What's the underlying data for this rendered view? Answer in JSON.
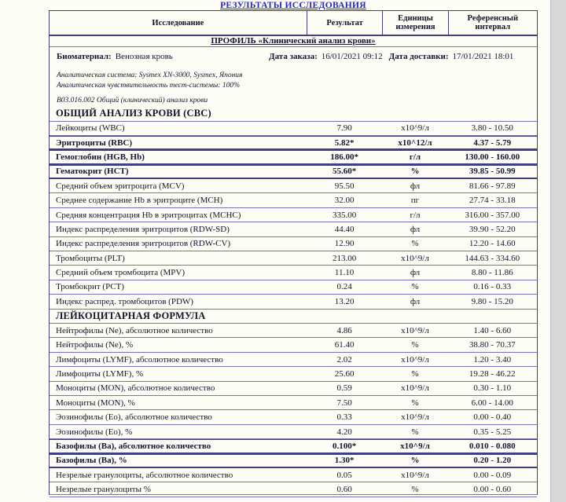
{
  "page": {
    "title": "РЕЗУЛЬТАТЫ ИССЛЕДОВАНИЯ",
    "table_header": {
      "study": "Исследование",
      "result": "Результат",
      "units": "Единицы измерения",
      "reference": "Референсный интервал"
    },
    "profile_title": "ПРОФИЛЬ «Клинический анализ крови»",
    "biomaterial_label": "Биоматериал:",
    "biomaterial_value": "Венозная кровь",
    "order_date_label": "Дата заказа:",
    "order_date_value": "16/01/2021 09:12",
    "delivery_date_label": "Дата доставки:",
    "delivery_date_value": "17/01/2021 18:01",
    "notes": {
      "system": "Аналитическая система: Sysmex XN-3000, Sysmex, Япония",
      "sensitivity": "Аналитическая чувствительность тест-системы: 100%",
      "service_code": "В03.016.002 Общий (клинический) анализ крови"
    }
  },
  "sections": [
    {
      "title": "ОБЩИЙ АНАЛИЗ КРОВИ (CBC)",
      "rows": [
        {
          "name": "Лейкоциты (WBC)",
          "result": "7.90",
          "units": "x10^9/л",
          "reference": "3.80 - 10.50",
          "abnormal": false
        },
        {
          "name": "Эритроциты (RBC)",
          "result": "5.82*",
          "units": "x10^12/л",
          "reference": "4.37 - 5.79",
          "abnormal": true
        },
        {
          "name": "Гемоглобин (HGB, Hb)",
          "result": "186.00*",
          "units": "г/л",
          "reference": "130.00 - 160.00",
          "abnormal": true
        },
        {
          "name": "Гематокрит (HCT)",
          "result": "55.60*",
          "units": "%",
          "reference": "39.85 - 50.99",
          "abnormal": true
        },
        {
          "name": "Средний объем эритроцита (MCV)",
          "result": "95.50",
          "units": "фл",
          "reference": "81.66 - 97.89",
          "abnormal": false
        },
        {
          "name": "Среднее содержание Hb в эритроците (MCH)",
          "result": "32.00",
          "units": "пг",
          "reference": "27.74 - 33.18",
          "abnormal": false
        },
        {
          "name": "Средняя концентрация Hb в эритроцитах (MCHC)",
          "result": "335.00",
          "units": "г/л",
          "reference": "316.00 - 357.00",
          "abnormal": false
        },
        {
          "name": "Индекс распределения эритроцитов (RDW-SD)",
          "result": "44.40",
          "units": "фл",
          "reference": "39.90 - 52.20",
          "abnormal": false
        },
        {
          "name": "Индекс распределения эритроцитов (RDW-CV)",
          "result": "12.90",
          "units": "%",
          "reference": "12.20 - 14.60",
          "abnormal": false
        },
        {
          "name": "Тромбоциты (PLT)",
          "result": "213.00",
          "units": "x10^9/л",
          "reference": "144.63 - 334.60",
          "abnormal": false
        },
        {
          "name": "Средний объем тромбоцита (MPV)",
          "result": "11.10",
          "units": "фл",
          "reference": "8.80 - 11.86",
          "abnormal": false
        },
        {
          "name": "Тромбокрит (PCT)",
          "result": "0.24",
          "units": "%",
          "reference": "0.16 - 0.33",
          "abnormal": false
        },
        {
          "name": "Индекс распред. тромбоцитов (PDW)",
          "result": "13.20",
          "units": "фл",
          "reference": "9.80 - 15.20",
          "abnormal": false
        }
      ]
    },
    {
      "title": "ЛЕЙКОЦИТАРНАЯ ФОРМУЛА",
      "rows": [
        {
          "name": "Нейтрофилы (Ne), абсолютное количество",
          "result": "4.86",
          "units": "x10^9/л",
          "reference": "1.40 - 6.60",
          "abnormal": false
        },
        {
          "name": "Нейтрофилы (Ne), %",
          "result": "61.40",
          "units": "%",
          "reference": "38.80 - 70.37",
          "abnormal": false
        },
        {
          "name": "Лимфоциты (LYMF), абсолютное количество",
          "result": "2.02",
          "units": "x10^9/л",
          "reference": "1.20 - 3.40",
          "abnormal": false
        },
        {
          "name": "Лимфоциты (LYMF), %",
          "result": "25.60",
          "units": "%",
          "reference": "19.28 - 46.22",
          "abnormal": false
        },
        {
          "name": "Моноциты (MON), абсолютное количество",
          "result": "0.59",
          "units": "x10^9/л",
          "reference": "0.30 - 1.10",
          "abnormal": false
        },
        {
          "name": "Моноциты (MON), %",
          "result": "7.50",
          "units": "%",
          "reference": "6.00 - 14.00",
          "abnormal": false
        },
        {
          "name": "Эозинофилы (Eo), абсолютное количество",
          "result": "0.33",
          "units": "x10^9/л",
          "reference": "0.00 - 0.40",
          "abnormal": false
        },
        {
          "name": "Эозинофилы (Eo), %",
          "result": "4.20",
          "units": "%",
          "reference": "0.35 - 5.25",
          "abnormal": false
        },
        {
          "name": "Базофилы (Ba), абсолютное количество",
          "result": "0.100*",
          "units": "x10^9/л",
          "reference": "0.010 - 0.080",
          "abnormal": true
        },
        {
          "name": "Базофилы (Ba), %",
          "result": "1.30*",
          "units": "%",
          "reference": "0.20 - 1.20",
          "abnormal": true
        },
        {
          "name": "Незрелые гранулоциты, абсолютное количество",
          "result": "0.05",
          "units": "x10^9/л",
          "reference": "0.00 - 0.09",
          "abnormal": false
        },
        {
          "name": "Незрелые гранулоциты %",
          "result": "0.60",
          "units": "%",
          "reference": "0.00 - 0.60",
          "abnormal": false
        }
      ]
    }
  ]
}
